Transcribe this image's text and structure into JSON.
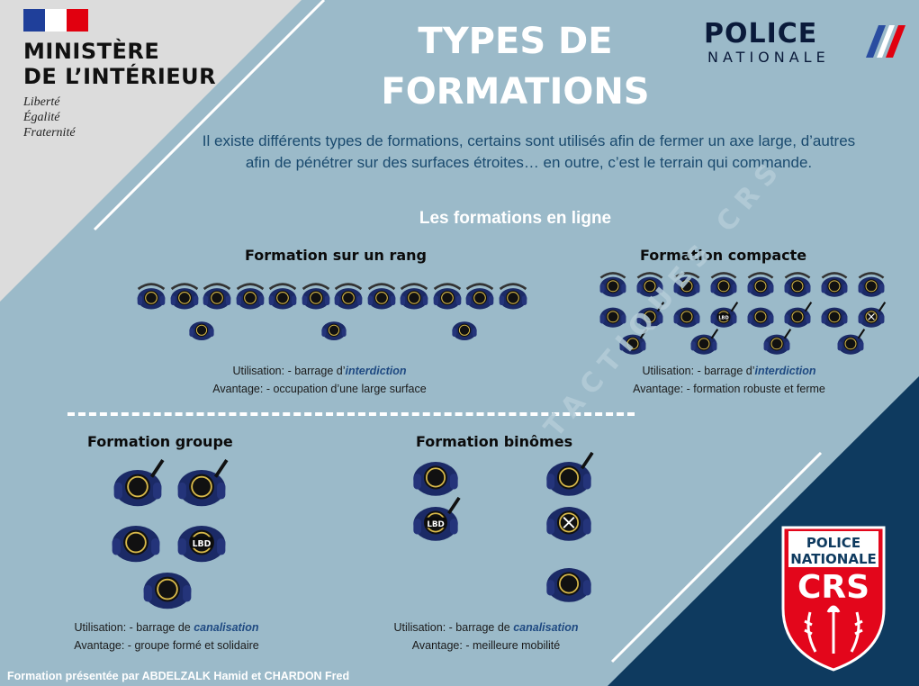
{
  "ministry": {
    "title_line1": "MINISTÈRE",
    "title_line2": "DE L’INTÉRIEUR",
    "motto": [
      "Liberté",
      "Égalité",
      "Fraternité"
    ]
  },
  "title_line1": "TYPES DE",
  "title_line2": "FORMATIONS",
  "police_logo": {
    "line1": "POLICE",
    "line2": "NATIONALE"
  },
  "intro": "Il existe différents types de formations, certains sont utilisés afin de fermer un axe large, d’autres afin de pénétrer sur des surfaces étroites… en outre, c’est le terrain qui commande.",
  "section_title": "Les formations en ligne",
  "formations": [
    {
      "title": "Formation sur un rang",
      "use_prefix": "Utilisation: - barrage d’",
      "use_emphasis": "interdiction",
      "advantage": "Avantage: - occupation d’une large surface"
    },
    {
      "title": "Formation compacte",
      "use_prefix": "Utilisation: - barrage d’",
      "use_emphasis": "interdiction",
      "advantage": "Avantage: - formation robuste et ferme"
    },
    {
      "title": "Formation groupe",
      "use_prefix": "Utilisation: - barrage de ",
      "use_emphasis": "canalisation",
      "advantage": "Avantage: - groupe formé et solidaire"
    },
    {
      "title": "Formation binômes",
      "use_prefix": "Utilisation: - barrage de ",
      "use_emphasis": "canalisation",
      "advantage": "Avantage: - meilleure mobilité"
    }
  ],
  "equipment_labels": {
    "lbd": "LBD"
  },
  "watermark": "TACTIQUES CRS",
  "crs_badge": {
    "line1": "POLICE",
    "line2": "NATIONALE",
    "acronym": "CRS"
  },
  "credit": "Formation présentée par ABDELZALK Hamid et CHARDON Fred",
  "colors": {
    "background": "#9bbac9",
    "grey_corner": "#dcdcdc",
    "navy_corner": "#0e3a5f",
    "emphasis": "#1f4a82",
    "uniform": "#1b2a66",
    "crs_red": "#e3061b"
  }
}
